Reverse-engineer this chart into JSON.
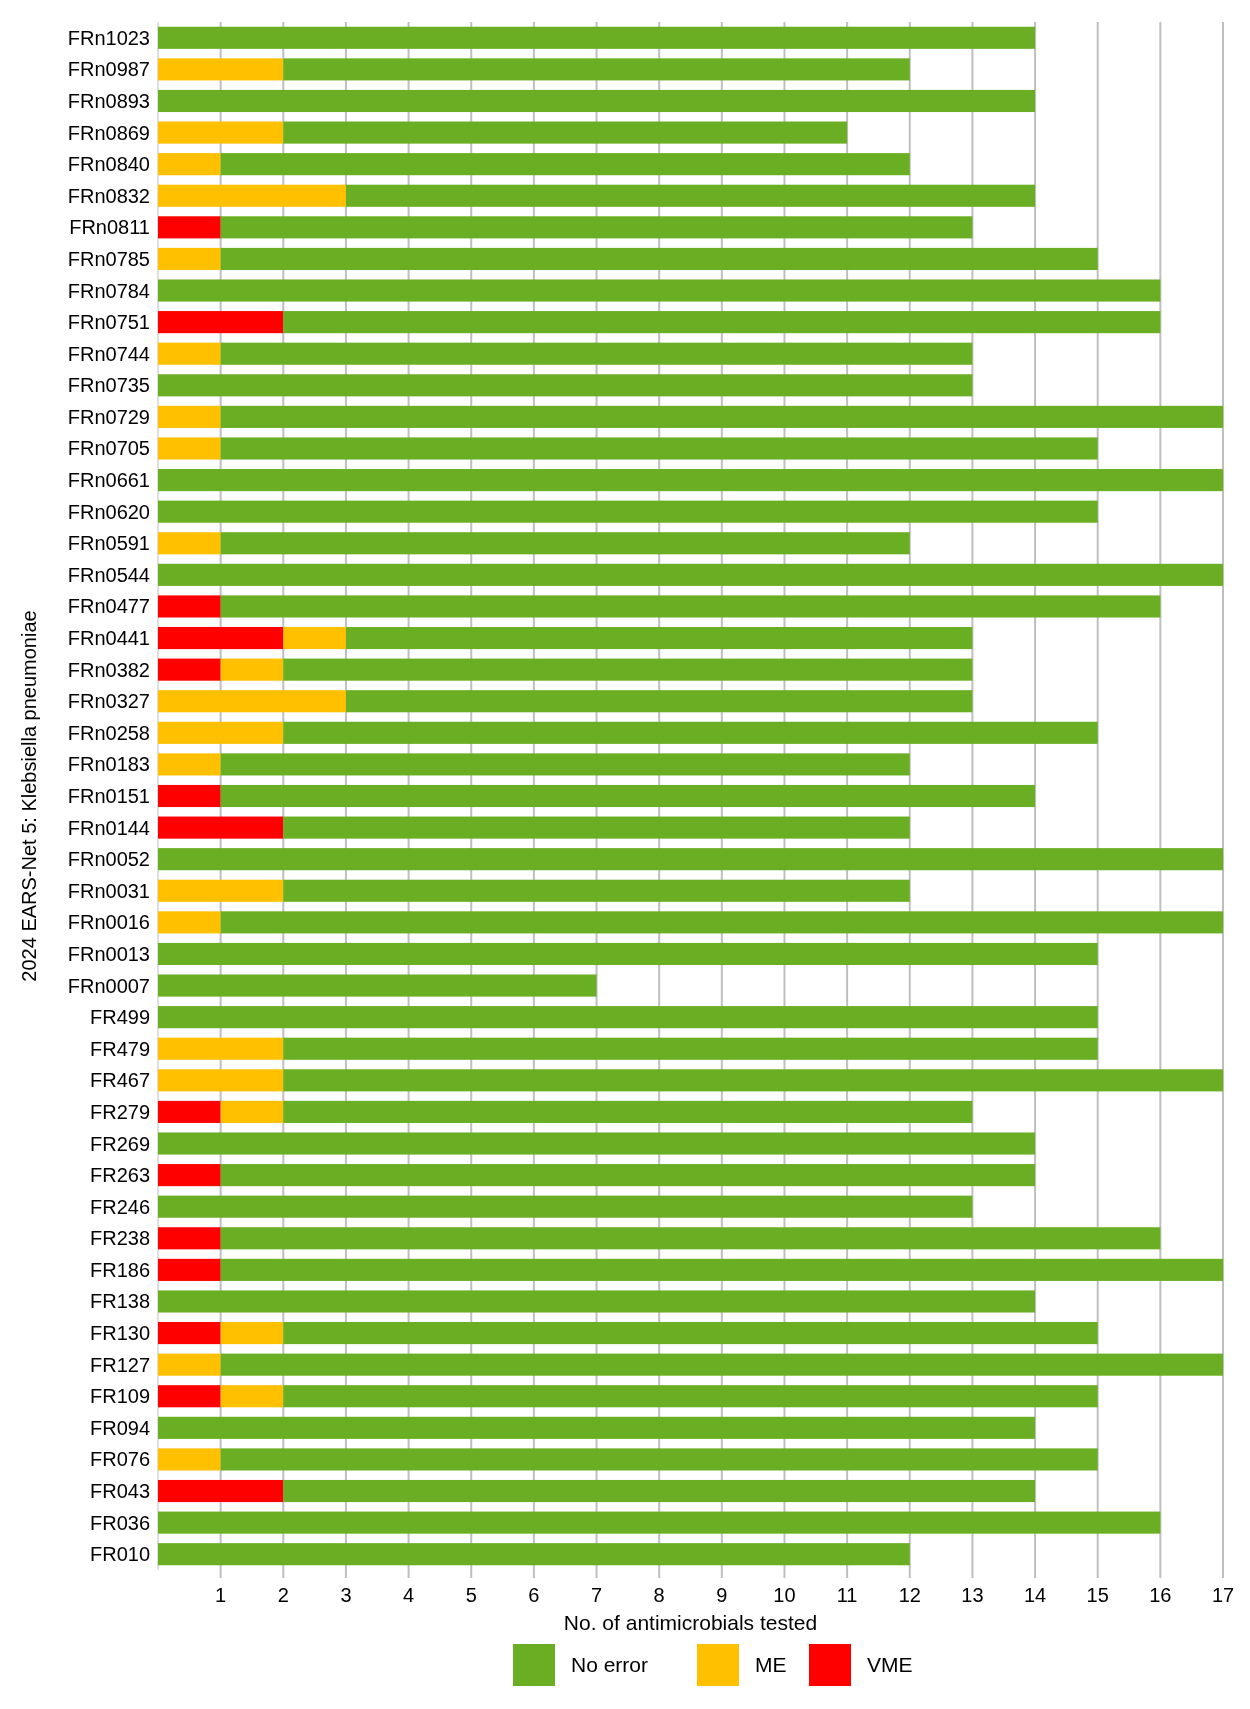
{
  "chart_data": {
    "type": "bar",
    "orientation": "horizontal",
    "stacked": true,
    "xlabel": "No. of antimicrobials tested",
    "ylabel": "2024 EARS-Net 5: Klebsiella pneumoniae",
    "categories": [
      "FRn1023",
      "FRn0987",
      "FRn0893",
      "FRn0869",
      "FRn0840",
      "FRn0832",
      "FRn0811",
      "FRn0785",
      "FRn0784",
      "FRn0751",
      "FRn0744",
      "FRn0735",
      "FRn0729",
      "FRn0705",
      "FRn0661",
      "FRn0620",
      "FRn0591",
      "FRn0544",
      "FRn0477",
      "FRn0441",
      "FRn0382",
      "FRn0327",
      "FRn0258",
      "FRn0183",
      "FRn0151",
      "FRn0144",
      "FRn0052",
      "FRn0031",
      "FRn0016",
      "FRn0013",
      "FRn0007",
      "FR499",
      "FR479",
      "FR467",
      "FR279",
      "FR269",
      "FR263",
      "FR246",
      "FR238",
      "FR186",
      "FR138",
      "FR130",
      "FR127",
      "FR109",
      "FR094",
      "FR076",
      "FR043",
      "FR036",
      "FR010"
    ],
    "series": [
      {
        "name": "VME",
        "color": "#ff0000",
        "values": [
          0,
          0,
          0,
          0,
          0,
          0,
          1,
          0,
          0,
          2,
          0,
          0,
          0,
          0,
          0,
          0,
          0,
          0,
          1,
          2,
          1,
          0,
          0,
          0,
          1,
          2,
          0,
          0,
          0,
          0,
          0,
          0,
          0,
          0,
          1,
          0,
          1,
          0,
          1,
          1,
          0,
          1,
          0,
          1,
          0,
          0,
          2,
          0,
          0
        ]
      },
      {
        "name": "ME",
        "color": "#ffc000",
        "values": [
          0,
          2,
          0,
          2,
          1,
          3,
          0,
          1,
          0,
          0,
          1,
          0,
          1,
          1,
          0,
          0,
          1,
          0,
          0,
          1,
          1,
          3,
          2,
          1,
          0,
          0,
          0,
          2,
          1,
          0,
          0,
          0,
          2,
          2,
          1,
          0,
          0,
          0,
          0,
          0,
          0,
          1,
          1,
          1,
          0,
          1,
          0,
          0,
          0
        ]
      },
      {
        "name": "No error",
        "color": "#6aaf23",
        "values": [
          14,
          10,
          14,
          9,
          11,
          11,
          12,
          14,
          16,
          14,
          12,
          13,
          16,
          14,
          17,
          15,
          11,
          17,
          15,
          10,
          11,
          10,
          13,
          11,
          13,
          10,
          17,
          10,
          16,
          15,
          7,
          15,
          13,
          15,
          11,
          14,
          13,
          13,
          15,
          16,
          14,
          13,
          16,
          13,
          14,
          14,
          12,
          16,
          12
        ]
      }
    ],
    "xlim": [
      0,
      17
    ],
    "xticks": [
      1,
      2,
      3,
      4,
      5,
      6,
      7,
      8,
      9,
      10,
      11,
      12,
      13,
      14,
      15,
      16,
      17
    ],
    "grid": "x",
    "legend": "bottom"
  }
}
